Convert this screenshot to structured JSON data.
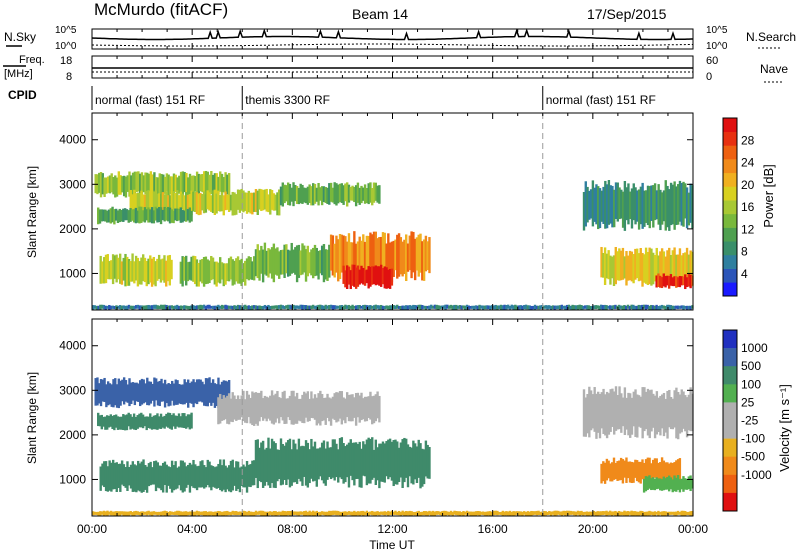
{
  "header": {
    "station": "McMurdo (fitACF)",
    "beam": "Beam 14",
    "date": "17/Sep/2015"
  },
  "noise_panel": {
    "left_label": "N.Sky",
    "right_label": "N.Search",
    "left_ticks": [
      "10^5",
      "10^0"
    ],
    "right_ticks": [
      "10^5",
      "10^0"
    ]
  },
  "freq_panel": {
    "left_label_top": "Freq.",
    "left_label_bottom": "[MHz]",
    "right_label": "Nave",
    "left_ticks": [
      "18",
      "8"
    ],
    "right_ticks": [
      "60",
      "0"
    ]
  },
  "cpid_panel": {
    "label": "CPID",
    "segments": [
      {
        "start_hour": 0,
        "end_hour": 6,
        "text": "normal (fast) 151 RF"
      },
      {
        "start_hour": 6,
        "end_hour": 18,
        "text": "themis 3300 RF"
      },
      {
        "start_hour": 18,
        "end_hour": 24,
        "text": "normal (fast) 151 RF"
      }
    ]
  },
  "chart_data": [
    {
      "type": "heatmap",
      "ylabel": "Slant Range [km]",
      "yticks": [
        1000,
        2000,
        3000,
        4000
      ],
      "ylim": [
        180,
        4600
      ],
      "xlim": [
        0,
        24
      ],
      "colorbar": {
        "label": "Power [dB]",
        "ticks": [
          "4",
          "8",
          "12",
          "16",
          "20",
          "24",
          "28"
        ],
        "range": [
          0,
          30
        ],
        "colors": [
          "#1a1aff",
          "#2b55b8",
          "#2f7f9f",
          "#3a8f6a",
          "#4fa050",
          "#79b83c",
          "#a8c834",
          "#d8d020",
          "#f0b020",
          "#f08a1a",
          "#ee6010",
          "#e83010",
          "#e01010"
        ]
      },
      "regions": [
        {
          "t0": 0.1,
          "t1": 5.5,
          "r0": 2700,
          "r1": 3300,
          "value": 14
        },
        {
          "t0": 1.5,
          "t1": 7.5,
          "r0": 2300,
          "r1": 2900,
          "value": 16
        },
        {
          "t0": 7.5,
          "t1": 11.5,
          "r0": 2500,
          "r1": 3050,
          "value": 12
        },
        {
          "t0": 0.2,
          "t1": 4.0,
          "r0": 2100,
          "r1": 2500,
          "value": 10
        },
        {
          "t0": 0.3,
          "t1": 3.2,
          "r0": 700,
          "r1": 1450,
          "value": 16
        },
        {
          "t0": 3.5,
          "t1": 6.5,
          "r0": 700,
          "r1": 1400,
          "value": 14
        },
        {
          "t0": 6.5,
          "t1": 9.5,
          "r0": 800,
          "r1": 1700,
          "value": 12
        },
        {
          "t0": 9.5,
          "t1": 13.5,
          "r0": 800,
          "r1": 1950,
          "value": 22
        },
        {
          "t0": 10.0,
          "t1": 12.0,
          "r0": 650,
          "r1": 1200,
          "value": 28
        },
        {
          "t0": 19.6,
          "t1": 24.0,
          "r0": 1950,
          "r1": 3100,
          "value": 8
        },
        {
          "t0": 20.3,
          "t1": 24.0,
          "r0": 700,
          "r1": 1600,
          "value": 18
        },
        {
          "t0": 22.5,
          "t1": 24.0,
          "r0": 650,
          "r1": 1000,
          "value": 28
        },
        {
          "t0": 0.0,
          "t1": 24.0,
          "r0": 180,
          "r1": 300,
          "value": 6
        }
      ]
    },
    {
      "type": "heatmap",
      "ylabel": "Slant Range [km]",
      "yticks": [
        1000,
        2000,
        3000,
        4000
      ],
      "ylim": [
        180,
        4600
      ],
      "xlim": [
        0,
        24
      ],
      "xlabel": "Time UT",
      "xticks": [
        "00:00",
        "04:00",
        "08:00",
        "12:00",
        "16:00",
        "20:00",
        "00:00"
      ],
      "colorbar": {
        "label": "Velocity [m s⁻¹]",
        "ticks": [
          "1000",
          "500",
          "100",
          "25",
          "-25",
          "-100",
          "-500",
          "-1000"
        ],
        "colors": [
          "#2030c0",
          "#3a62a8",
          "#3f8a6a",
          "#52b050",
          "#b0b0b0",
          "#b0b0b0",
          "#e8b020",
          "#f08a1a",
          "#ee6010",
          "#e01010"
        ]
      },
      "regions": [
        {
          "t0": 0.1,
          "t1": 5.5,
          "r0": 2600,
          "r1": 3300,
          "value": 500
        },
        {
          "t0": 5.0,
          "t1": 11.5,
          "r0": 2200,
          "r1": 3000,
          "value": 0
        },
        {
          "t0": 0.2,
          "t1": 4.0,
          "r0": 2100,
          "r1": 2500,
          "value": 100
        },
        {
          "t0": 0.3,
          "t1": 6.5,
          "r0": 700,
          "r1": 1450,
          "value": 100
        },
        {
          "t0": 6.5,
          "t1": 13.5,
          "r0": 800,
          "r1": 1950,
          "value": 150
        },
        {
          "t0": 19.6,
          "t1": 24.0,
          "r0": 1900,
          "r1": 3100,
          "value": 0
        },
        {
          "t0": 20.3,
          "t1": 23.5,
          "r0": 900,
          "r1": 1500,
          "value": -300
        },
        {
          "t0": 22.0,
          "t1": 24.0,
          "r0": 700,
          "r1": 1100,
          "value": 50
        },
        {
          "t0": 0.0,
          "t1": 24.0,
          "r0": 180,
          "r1": 300,
          "value": -30
        }
      ]
    }
  ]
}
